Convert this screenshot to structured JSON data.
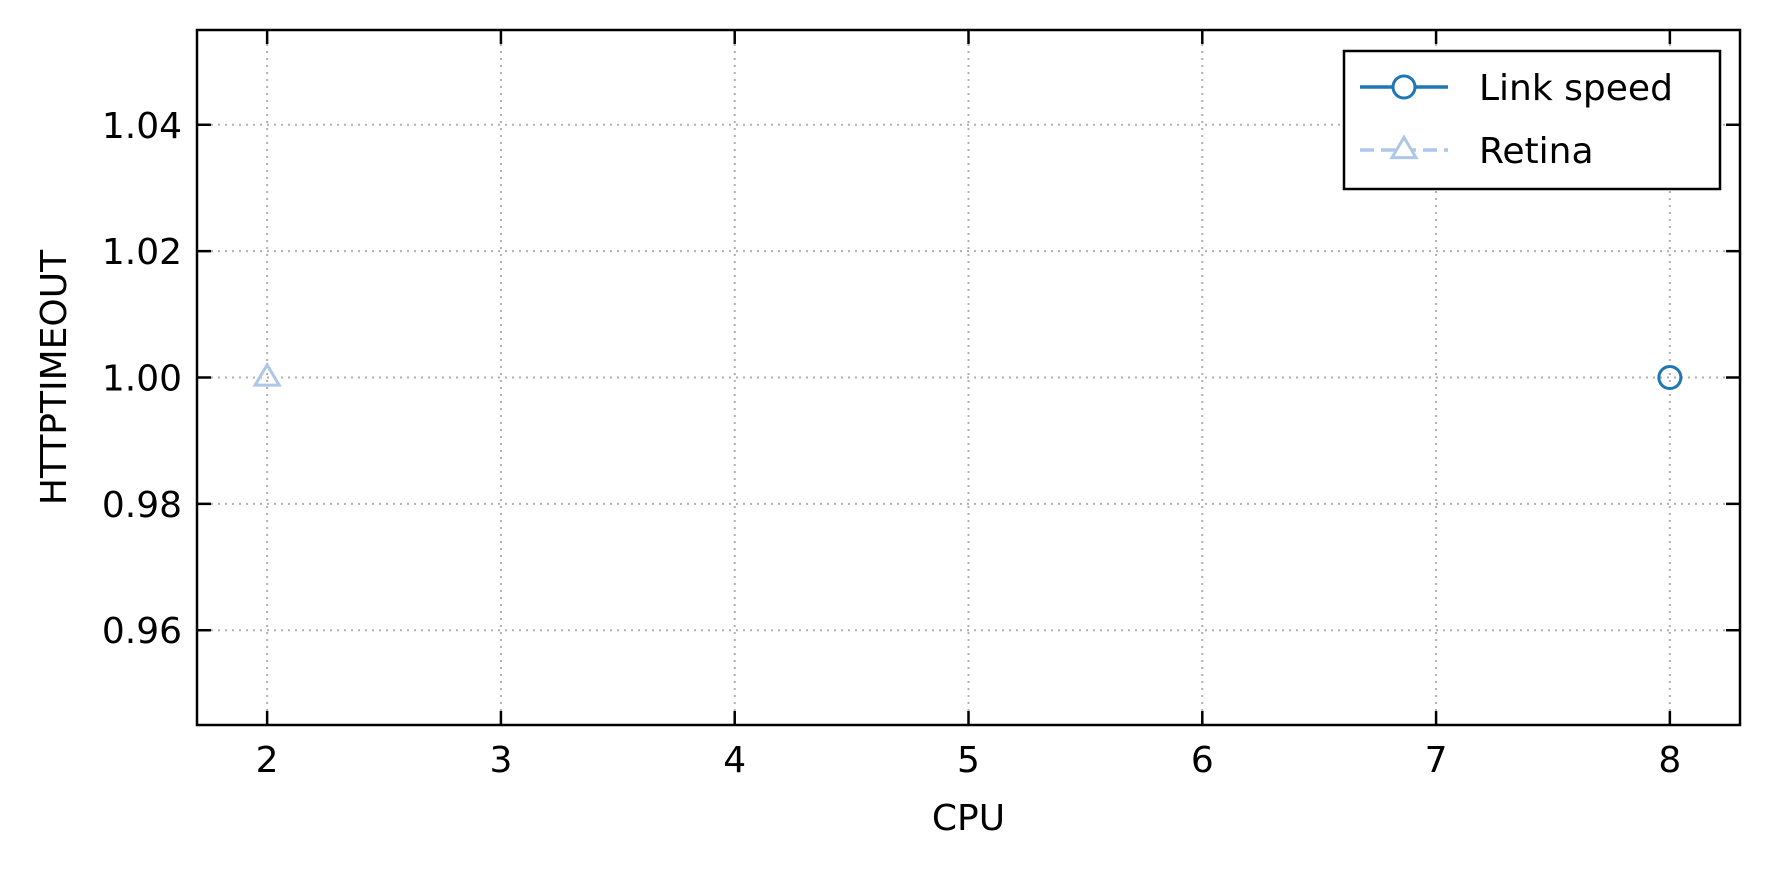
{
  "chart_data": {
    "type": "line",
    "title": "",
    "xlabel": "CPU",
    "ylabel": "HTTPTIMEOUT",
    "xlim": [
      1.7,
      8.3
    ],
    "ylim": [
      0.945,
      1.055
    ],
    "xticks": [
      2,
      3,
      4,
      5,
      6,
      7,
      8
    ],
    "xtick_labels": [
      "2",
      "3",
      "4",
      "5",
      "6",
      "7",
      "8"
    ],
    "yticks": [
      0.96,
      0.98,
      1.0,
      1.02,
      1.04
    ],
    "ytick_labels": [
      "0.96",
      "0.98",
      "1.00",
      "1.02",
      "1.04"
    ],
    "grid": true,
    "legend_position": "top-right",
    "series": [
      {
        "name": "Link speed",
        "color": "#1f77b4",
        "marker": "circle-open",
        "line_style": "solid",
        "x": [
          8
        ],
        "y": [
          1.0
        ]
      },
      {
        "name": "Retina",
        "color": "#aec7e8",
        "marker": "triangle-open",
        "line_style": "dashed",
        "x": [
          2
        ],
        "y": [
          1.0
        ]
      }
    ]
  }
}
